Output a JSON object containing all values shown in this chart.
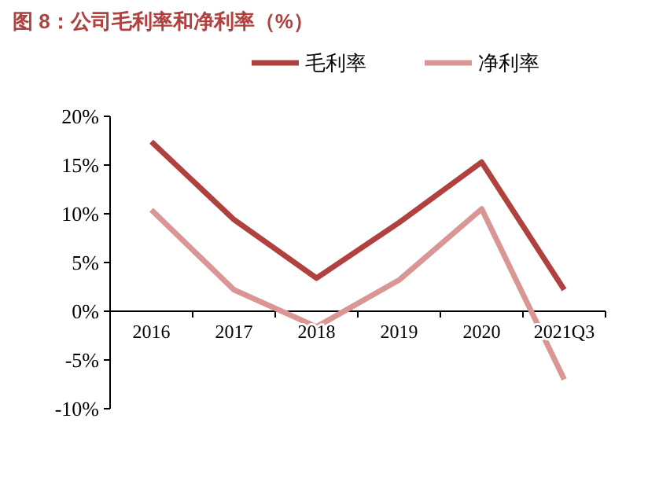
{
  "chart_data": {
    "type": "line",
    "title": "图 8：公司毛利率和净利率（%）",
    "categories": [
      "2016",
      "2017",
      "2018",
      "2019",
      "2020",
      "2021Q3"
    ],
    "series": [
      {
        "name": "毛利率",
        "color": "#b0413e",
        "values": [
          17.4,
          9.4,
          3.4,
          9.1,
          15.3,
          2.2
        ]
      },
      {
        "name": "净利率",
        "color": "#d99694",
        "values": [
          10.4,
          2.2,
          -1.6,
          3.2,
          10.5,
          -7.0
        ]
      }
    ],
    "ylim": [
      -10,
      20
    ],
    "yticks": [
      {
        "value": -10,
        "label": "-10%"
      },
      {
        "value": -5,
        "label": "-5%"
      },
      {
        "value": 0,
        "label": "0%"
      },
      {
        "value": 5,
        "label": "5%"
      },
      {
        "value": 10,
        "label": "10%"
      },
      {
        "value": 15,
        "label": "15%"
      },
      {
        "value": 20,
        "label": "20%"
      }
    ],
    "legend": "top",
    "grid": false,
    "marker": "none",
    "line_style": "solid"
  }
}
